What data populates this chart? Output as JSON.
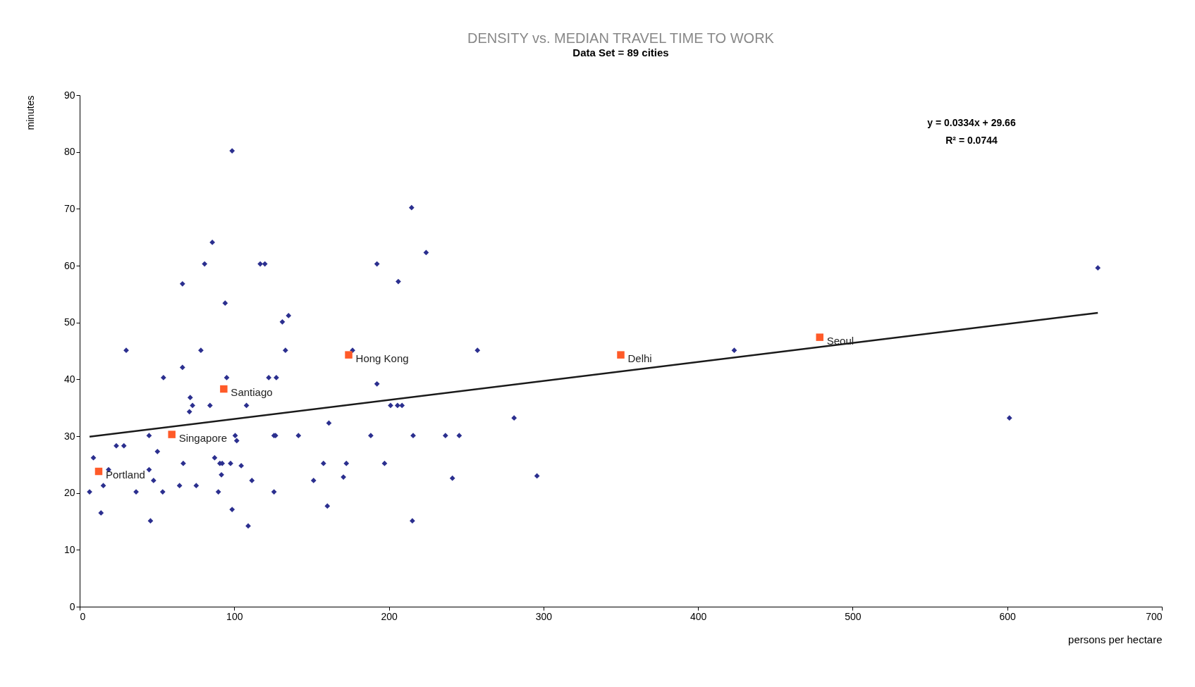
{
  "chart_data": {
    "type": "scatter",
    "title": "DENSITY vs. MEDIAN TRAVEL TIME TO WORK",
    "subtitle": "Data Set = 89 cities",
    "xlabel": "persons per hectare",
    "ylabel": "minutes",
    "xlim": [
      0,
      700
    ],
    "xticks": [
      0,
      100,
      200,
      300,
      400,
      500,
      600,
      700
    ],
    "ylim": [
      0,
      90
    ],
    "yticks": [
      0,
      10,
      20,
      30,
      40,
      50,
      60,
      70,
      80,
      90
    ],
    "grid": false,
    "series": [
      {
        "marker": "diamond",
        "color": "#2b2f8f",
        "x": [
          6.4,
          8.9,
          13.8,
          15.3,
          18.7,
          23.7,
          28.6,
          30.1,
          36.5,
          44.9,
          44.9,
          45.8,
          47.8,
          50.3,
          53.7,
          54.2,
          64.6,
          66.5,
          66.5,
          67.0,
          71.0,
          71.5,
          73.0,
          75.4,
          78.4,
          80.8,
          84.3,
          85.8,
          87.3,
          89.7,
          90.7,
          91.7,
          92.2,
          94.1,
          95.1,
          97.6,
          98.6,
          98.6,
          100.6,
          101.6,
          104.5,
          107.9,
          109.0,
          111.4,
          116.8,
          119.8,
          131.1,
          133.1,
          135.1,
          122.3,
          127.2,
          125.7,
          126.7,
          125.7,
          141.5,
          151.3,
          157.7,
          160.2,
          161.2,
          170.6,
          172.5,
          176.5,
          188.3,
          192.3,
          192.3,
          197.2,
          201.1,
          205.6,
          208.5,
          206.1,
          214.7,
          215.2,
          215.7,
          224.1,
          236.6,
          241.1,
          245.5,
          257.3,
          281.0,
          295.8,
          423.4,
          601.4,
          658.6
        ],
        "values": [
          20.2,
          26.2,
          16.5,
          21.3,
          24.1,
          28.3,
          28.3,
          45.1,
          20.2,
          30.1,
          24.1,
          15.1,
          22.2,
          27.3,
          20.2,
          40.3,
          21.3,
          56.8,
          42.1,
          25.2,
          34.3,
          36.8,
          35.4,
          21.3,
          45.1,
          60.3,
          35.4,
          64.1,
          26.2,
          20.2,
          25.2,
          23.2,
          25.2,
          53.4,
          40.3,
          25.2,
          17.1,
          80.2,
          30.1,
          29.2,
          24.8,
          35.4,
          14.2,
          22.2,
          60.3,
          60.3,
          50.1,
          45.1,
          51.2,
          40.3,
          40.3,
          30.1,
          30.1,
          20.2,
          30.1,
          22.2,
          25.2,
          17.7,
          32.3,
          22.8,
          25.2,
          45.1,
          30.1,
          60.3,
          39.2,
          25.2,
          35.4,
          35.4,
          35.4,
          57.2,
          70.2,
          15.1,
          30.1,
          62.3,
          30.1,
          22.6,
          30.1,
          45.1,
          33.2,
          23.0,
          45.1,
          33.2,
          59.6
        ]
      },
      {
        "marker": "square",
        "color": "#ff5a28",
        "x": [
          12.3,
          59.6,
          93.2,
          174.0,
          350.0,
          478.7
        ],
        "values": [
          23.8,
          30.3,
          38.3,
          44.3,
          44.3,
          47.4
        ]
      },
      {
        "type": "line",
        "marker": "none",
        "line_style": "solid",
        "color": "#1a1a1a",
        "x": [
          6.4,
          658.6
        ],
        "values": [
          29.9,
          51.7
        ]
      }
    ],
    "annotations": [
      {
        "text": "Portland",
        "x": 12.3,
        "y": 23.8
      },
      {
        "text": "Singapore",
        "x": 59.6,
        "y": 30.3
      },
      {
        "text": "Santiago",
        "x": 93.2,
        "y": 38.3
      },
      {
        "text": "Hong Kong",
        "x": 174.0,
        "y": 44.3
      },
      {
        "text": "Delhi",
        "x": 350.0,
        "y": 44.3
      },
      {
        "text": "Seoul",
        "x": 478.7,
        "y": 47.4
      },
      "y = 0.0334x + 29.66",
      "R² = 0.0744"
    ]
  }
}
